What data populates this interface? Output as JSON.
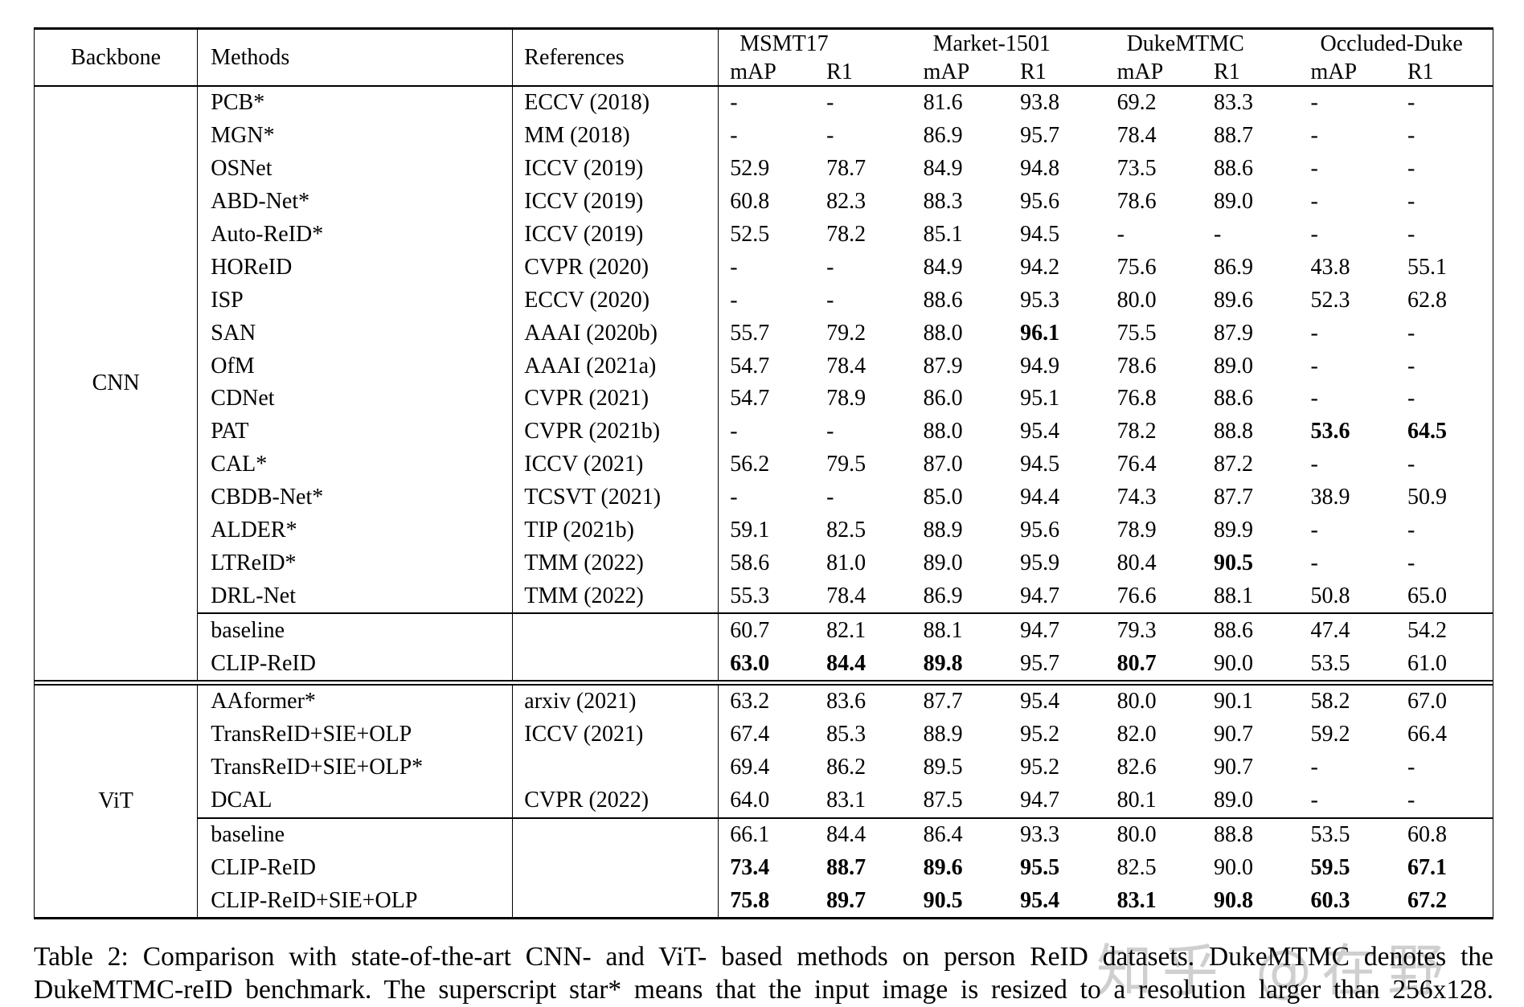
{
  "header": {
    "backbone": "Backbone",
    "methods": "Methods",
    "references": "References",
    "datasets": [
      "MSMT17",
      "Market-1501",
      "DukeMTMC",
      "Occluded-Duke"
    ],
    "metrics": [
      "mAP",
      "R1"
    ]
  },
  "groups": [
    {
      "backbone": "CNN",
      "rows": [
        {
          "method": "PCB*",
          "ref": "ECCV (2018)",
          "values": [
            "-",
            "-",
            "81.6",
            "93.8",
            "69.2",
            "83.3",
            "-",
            "-"
          ],
          "bold": [],
          "rule_above": false
        },
        {
          "method": "MGN*",
          "ref": "MM (2018)",
          "values": [
            "-",
            "-",
            "86.9",
            "95.7",
            "78.4",
            "88.7",
            "-",
            "-"
          ],
          "bold": [],
          "rule_above": false
        },
        {
          "method": "OSNet",
          "ref": "ICCV (2019)",
          "values": [
            "52.9",
            "78.7",
            "84.9",
            "94.8",
            "73.5",
            "88.6",
            "-",
            "-"
          ],
          "bold": [],
          "rule_above": false
        },
        {
          "method": "ABD-Net*",
          "ref": "ICCV (2019)",
          "values": [
            "60.8",
            "82.3",
            "88.3",
            "95.6",
            "78.6",
            "89.0",
            "-",
            "-"
          ],
          "bold": [],
          "rule_above": false
        },
        {
          "method": "Auto-ReID*",
          "ref": "ICCV (2019)",
          "values": [
            "52.5",
            "78.2",
            "85.1",
            "94.5",
            "-",
            "-",
            "-",
            "-"
          ],
          "bold": [],
          "rule_above": false
        },
        {
          "method": "HOReID",
          "ref": "CVPR (2020)",
          "values": [
            "-",
            "-",
            "84.9",
            "94.2",
            "75.6",
            "86.9",
            "43.8",
            "55.1"
          ],
          "bold": [],
          "rule_above": false
        },
        {
          "method": "ISP",
          "ref": "ECCV (2020)",
          "values": [
            "-",
            "-",
            "88.6",
            "95.3",
            "80.0",
            "89.6",
            "52.3",
            "62.8"
          ],
          "bold": [],
          "rule_above": false
        },
        {
          "method": "SAN",
          "ref": "AAAI (2020b)",
          "values": [
            "55.7",
            "79.2",
            "88.0",
            "96.1",
            "75.5",
            "87.9",
            "-",
            "-"
          ],
          "bold": [
            3
          ],
          "rule_above": false
        },
        {
          "method": "OfM",
          "ref": "AAAI (2021a)",
          "values": [
            "54.7",
            "78.4",
            "87.9",
            "94.9",
            "78.6",
            "89.0",
            "-",
            "-"
          ],
          "bold": [],
          "rule_above": false
        },
        {
          "method": "CDNet",
          "ref": "CVPR (2021)",
          "values": [
            "54.7",
            "78.9",
            "86.0",
            "95.1",
            "76.8",
            "88.6",
            "-",
            "-"
          ],
          "bold": [],
          "rule_above": false
        },
        {
          "method": "PAT",
          "ref": "CVPR (2021b)",
          "values": [
            "-",
            "-",
            "88.0",
            "95.4",
            "78.2",
            "88.8",
            "53.6",
            "64.5"
          ],
          "bold": [
            6,
            7
          ],
          "rule_above": false
        },
        {
          "method": "CAL*",
          "ref": "ICCV (2021)",
          "values": [
            "56.2",
            "79.5",
            "87.0",
            "94.5",
            "76.4",
            "87.2",
            "-",
            "-"
          ],
          "bold": [],
          "rule_above": false
        },
        {
          "method": "CBDB-Net*",
          "ref": "TCSVT (2021)",
          "values": [
            "-",
            "-",
            "85.0",
            "94.4",
            "74.3",
            "87.7",
            "38.9",
            "50.9"
          ],
          "bold": [],
          "rule_above": false
        },
        {
          "method": "ALDER*",
          "ref": "TIP (2021b)",
          "values": [
            "59.1",
            "82.5",
            "88.9",
            "95.6",
            "78.9",
            "89.9",
            "-",
            "-"
          ],
          "bold": [],
          "rule_above": false
        },
        {
          "method": "LTReID*",
          "ref": "TMM (2022)",
          "values": [
            "58.6",
            "81.0",
            "89.0",
            "95.9",
            "80.4",
            "90.5",
            "-",
            "-"
          ],
          "bold": [
            5
          ],
          "rule_above": false
        },
        {
          "method": "DRL-Net",
          "ref": "TMM (2022)",
          "values": [
            "55.3",
            "78.4",
            "86.9",
            "94.7",
            "76.6",
            "88.1",
            "50.8",
            "65.0"
          ],
          "bold": [],
          "rule_above": false
        },
        {
          "method": "baseline",
          "ref": "",
          "values": [
            "60.7",
            "82.1",
            "88.1",
            "94.7",
            "79.3",
            "88.6",
            "47.4",
            "54.2"
          ],
          "bold": [],
          "rule_above": true
        },
        {
          "method": "CLIP-ReID",
          "ref": "",
          "values": [
            "63.0",
            "84.4",
            "89.8",
            "95.7",
            "80.7",
            "90.0",
            "53.5",
            "61.0"
          ],
          "bold": [
            0,
            1,
            2,
            4
          ],
          "rule_above": false
        }
      ]
    },
    {
      "backbone": "ViT",
      "rows": [
        {
          "method": "AAformer*",
          "ref": "arxiv (2021)",
          "values": [
            "63.2",
            "83.6",
            "87.7",
            "95.4",
            "80.0",
            "90.1",
            "58.2",
            "67.0"
          ],
          "bold": [],
          "rule_above": false
        },
        {
          "method": "TransReID+SIE+OLP",
          "ref": "ICCV (2021)",
          "values": [
            "67.4",
            "85.3",
            "88.9",
            "95.2",
            "82.0",
            "90.7",
            "59.2",
            "66.4"
          ],
          "bold": [],
          "rule_above": false
        },
        {
          "method": "TransReID+SIE+OLP*",
          "ref": "",
          "values": [
            "69.4",
            "86.2",
            "89.5",
            "95.2",
            "82.6",
            "90.7",
            "-",
            "-"
          ],
          "bold": [],
          "rule_above": false
        },
        {
          "method": "DCAL",
          "ref": "CVPR (2022)",
          "values": [
            "64.0",
            "83.1",
            "87.5",
            "94.7",
            "80.1",
            "89.0",
            "-",
            "-"
          ],
          "bold": [],
          "rule_above": false
        },
        {
          "method": "baseline",
          "ref": "",
          "values": [
            "66.1",
            "84.4",
            "86.4",
            "93.3",
            "80.0",
            "88.8",
            "53.5",
            "60.8"
          ],
          "bold": [],
          "rule_above": true
        },
        {
          "method": "CLIP-ReID",
          "ref": "",
          "values": [
            "73.4",
            "88.7",
            "89.6",
            "95.5",
            "82.5",
            "90.0",
            "59.5",
            "67.1"
          ],
          "bold": [
            0,
            1,
            2,
            3,
            6,
            7
          ],
          "rule_above": false
        },
        {
          "method": "CLIP-ReID+SIE+OLP",
          "ref": "",
          "values": [
            "75.8",
            "89.7",
            "90.5",
            "95.4",
            "83.1",
            "90.8",
            "60.3",
            "67.2"
          ],
          "bold": [
            0,
            1,
            2,
            3,
            4,
            5,
            6,
            7
          ],
          "rule_above": false
        }
      ]
    }
  ],
  "caption": {
    "line1": "Table 2: Comparison with state-of-the-art CNN- and ViT- based methods on person ReID datasets. DukeMTMC denotes the",
    "line2": "DukeMTMC-reID benchmark. The superscript star* means that the input image is resized to a resolution larger than 256x128."
  },
  "watermark": "知乎 @在野"
}
